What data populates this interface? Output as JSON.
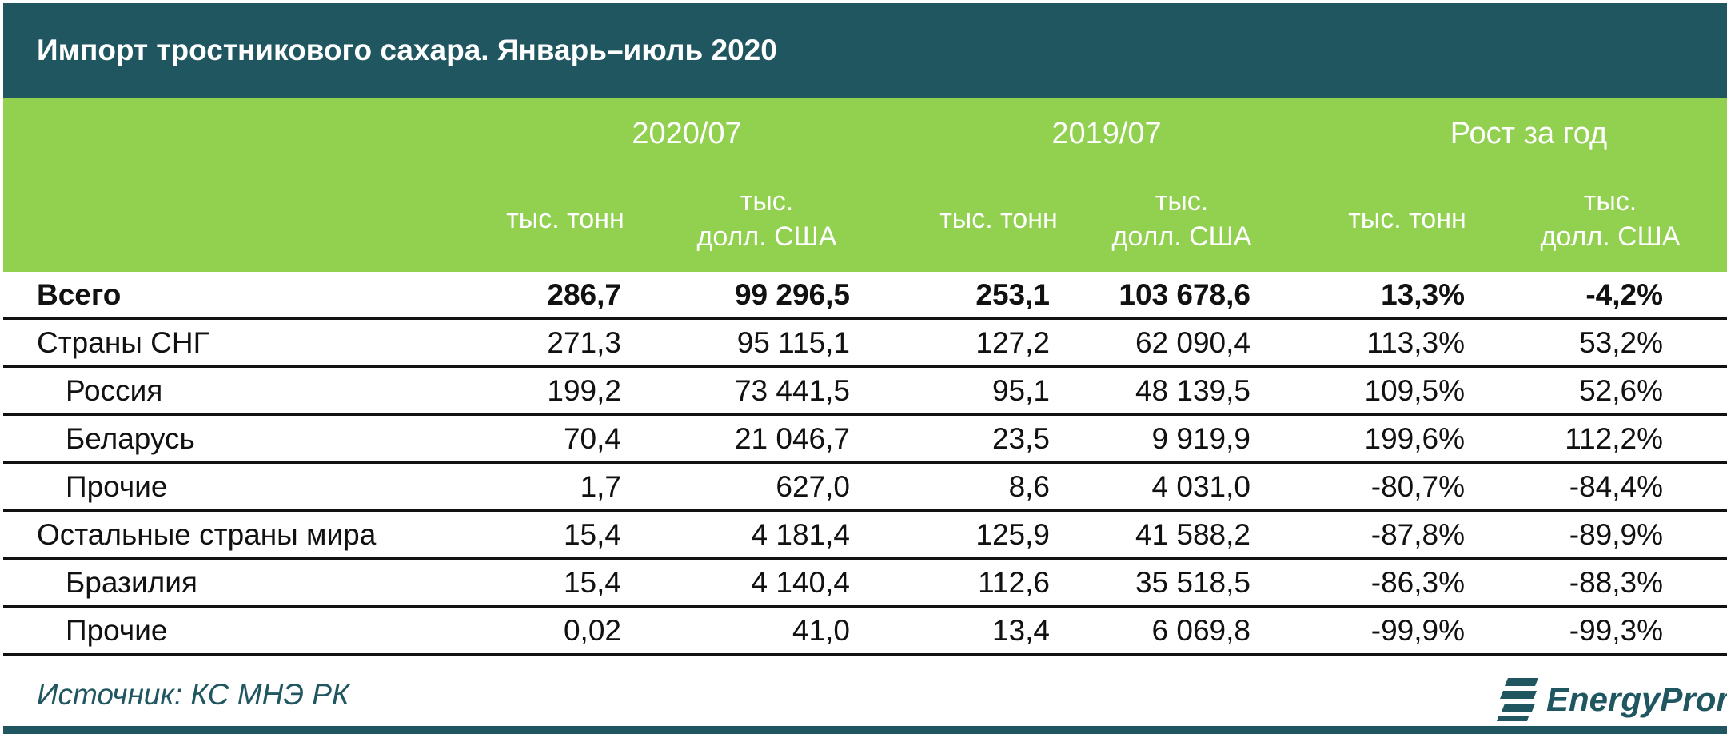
{
  "title": "Импорт тростникового сахара. Январь–июль 2020",
  "header": {
    "groups": [
      "2020/07",
      "2019/07",
      "Рост за год"
    ],
    "units_t": "тыс. тонн",
    "units_usd_line1": "тыс.",
    "units_usd_line2": "долл. США"
  },
  "rows": [
    {
      "label": "Всего",
      "bold": true,
      "indent": false,
      "v": [
        "286,7",
        "99 296,5",
        "253,1",
        "103 678,6",
        "13,3%",
        "-4,2%"
      ]
    },
    {
      "label": "Страны СНГ",
      "bold": false,
      "indent": false,
      "v": [
        "271,3",
        "95 115,1",
        "127,2",
        "62 090,4",
        "113,3%",
        "53,2%"
      ]
    },
    {
      "label": "Россия",
      "bold": false,
      "indent": true,
      "v": [
        "199,2",
        "73 441,5",
        "95,1",
        "48 139,5",
        "109,5%",
        "52,6%"
      ]
    },
    {
      "label": "Беларусь",
      "bold": false,
      "indent": true,
      "v": [
        "70,4",
        "21 046,7",
        "23,5",
        "9 919,9",
        "199,6%",
        "112,2%"
      ]
    },
    {
      "label": "Прочие",
      "bold": false,
      "indent": true,
      "v": [
        "1,7",
        "627,0",
        "8,6",
        "4 031,0",
        "-80,7%",
        "-84,4%"
      ]
    },
    {
      "label": "Остальные страны мира",
      "bold": false,
      "indent": false,
      "v": [
        "15,4",
        "4 181,4",
        "125,9",
        "41 588,2",
        "-87,8%",
        "-89,9%"
      ]
    },
    {
      "label": "Бразилия",
      "bold": false,
      "indent": true,
      "v": [
        "15,4",
        "4 140,4",
        "112,6",
        "35 518,5",
        "-86,3%",
        "-88,3%"
      ]
    },
    {
      "label": "Прочие",
      "bold": false,
      "indent": true,
      "v": [
        "0,02",
        "41,0",
        "13,4",
        "6 069,8",
        "-99,9%",
        "-99,3%"
      ]
    }
  ],
  "source": "Источник: КС МНЭ РК",
  "logo_text": "EnergyProm",
  "colors": {
    "title_bg": "#1f5660",
    "header_bg": "#92d050"
  }
}
